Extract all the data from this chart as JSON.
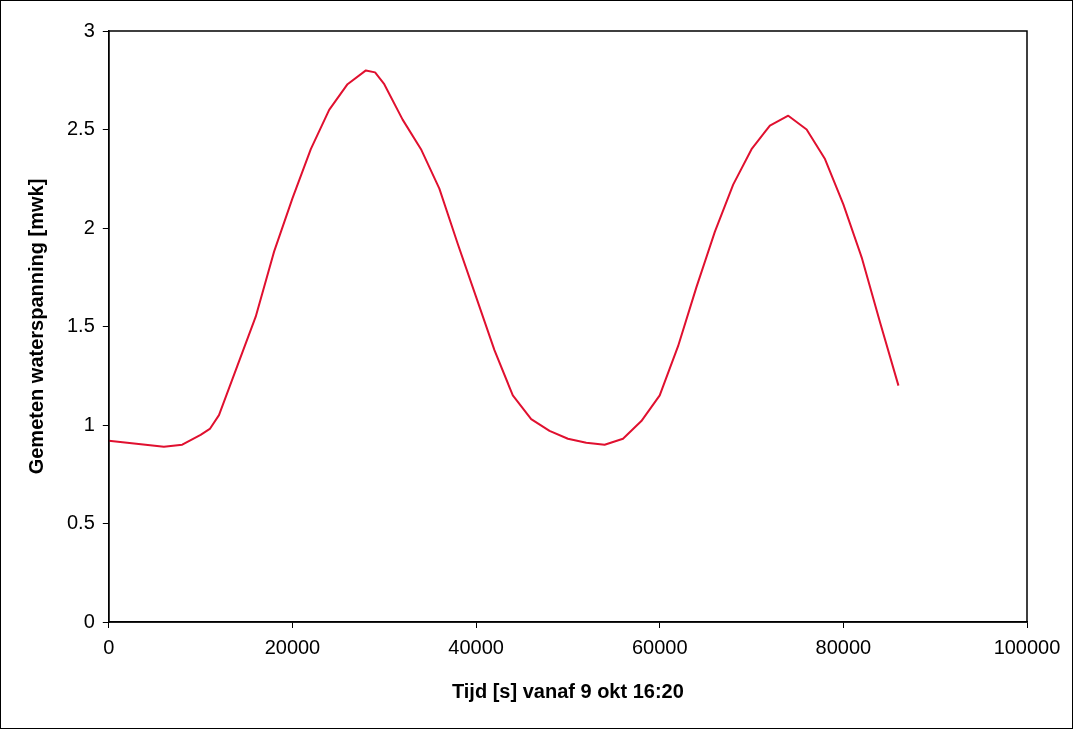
{
  "chart_data": {
    "type": "line",
    "xlabel": "Tijd [s] vanaf 9 okt 16:20",
    "ylabel": "Gemeten waterspanning [mwk]",
    "xlim": [
      0,
      100000
    ],
    "xticks": [
      0,
      20000,
      40000,
      60000,
      80000,
      100000
    ],
    "ylim": [
      0,
      3
    ],
    "yticks": [
      0,
      0.5,
      1,
      1.5,
      2,
      2.5,
      3
    ],
    "grid": false,
    "legend": false,
    "marker": "none",
    "line_style": "solid",
    "series": [
      {
        "color": "#e0102f",
        "x": [
          0,
          2000,
          4000,
          6000,
          8000,
          10000,
          11000,
          12000,
          14000,
          16000,
          18000,
          20000,
          22000,
          24000,
          26000,
          28000,
          29000,
          30000,
          32000,
          34000,
          36000,
          38000,
          40000,
          42000,
          44000,
          46000,
          48000,
          50000,
          52000,
          54000,
          56000,
          58000,
          60000,
          62000,
          64000,
          66000,
          68000,
          70000,
          72000,
          74000,
          76000,
          78000,
          80000,
          82000,
          84000,
          86000
        ],
        "values": [
          0.92,
          0.91,
          0.9,
          0.89,
          0.9,
          0.95,
          0.98,
          1.05,
          1.3,
          1.55,
          1.88,
          2.15,
          2.4,
          2.6,
          2.73,
          2.8,
          2.79,
          2.73,
          2.55,
          2.4,
          2.2,
          1.92,
          1.65,
          1.38,
          1.15,
          1.03,
          0.97,
          0.93,
          0.91,
          0.9,
          0.93,
          1.02,
          1.15,
          1.4,
          1.7,
          1.98,
          2.22,
          2.4,
          2.52,
          2.57,
          2.5,
          2.35,
          2.12,
          1.85,
          1.52,
          1.2
        ]
      }
    ]
  }
}
